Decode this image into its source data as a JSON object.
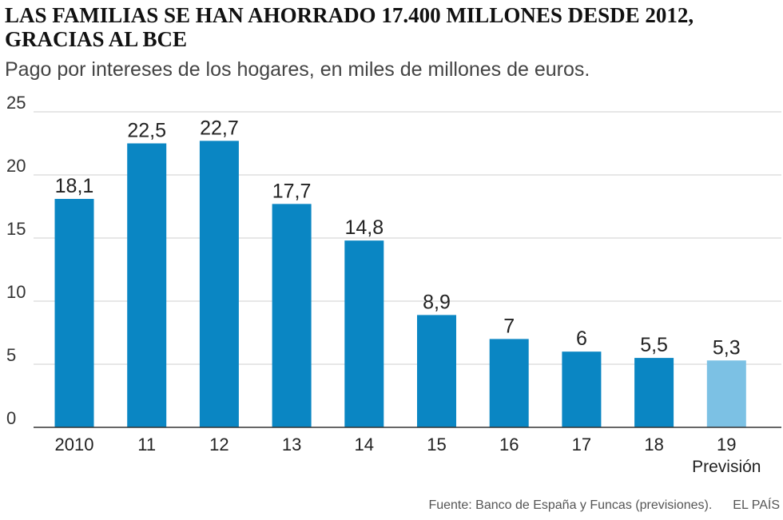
{
  "chart_data": {
    "type": "bar",
    "title": "LAS FAMILIAS SE HAN AHORRADO 17.400 MILLONES DESDE 2012, GRACIAS AL BCE",
    "subtitle": "Pago por intereses de los hogares, en miles de millones de euros.",
    "categories": [
      "2010",
      "11",
      "12",
      "13",
      "14",
      "15",
      "16",
      "17",
      "18",
      "19"
    ],
    "values": [
      18.1,
      22.5,
      22.7,
      17.7,
      14.8,
      8.9,
      7,
      6,
      5.5,
      5.3
    ],
    "value_labels": [
      "18,1",
      "22,5",
      "22,7",
      "17,7",
      "14,8",
      "8,9",
      "7",
      "6",
      "5,5",
      "5,3"
    ],
    "forecast_index": 9,
    "forecast_label": "Previsión",
    "yticks": [
      "0",
      "5",
      "10",
      "15",
      "20",
      "25"
    ],
    "ylim": [
      0,
      25
    ],
    "grid": true,
    "colors": {
      "bar": "#0a86c3",
      "forecast": "#7cc1e4",
      "grid": "#cfcfcf",
      "axis": "#333333"
    }
  },
  "footer": {
    "source": "Fuente: Banco de España y Funcas (previsiones).",
    "brand": "EL PAÍS"
  }
}
